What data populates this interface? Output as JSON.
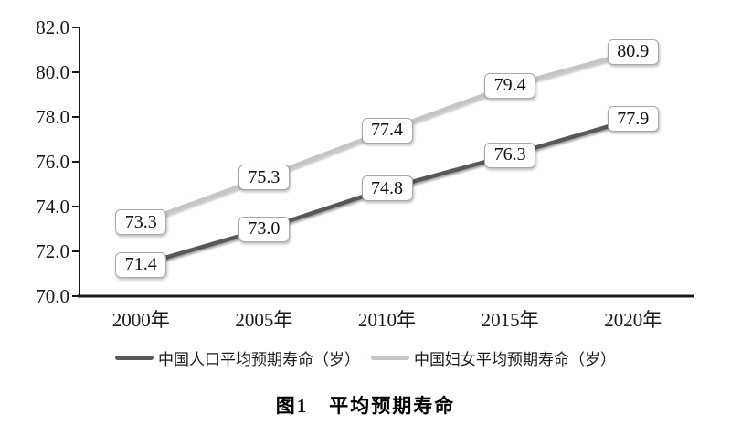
{
  "chart_data": {
    "type": "line",
    "title": "图1　平均预期寿命",
    "categories": [
      "2000年",
      "2005年",
      "2010年",
      "2015年",
      "2020年"
    ],
    "series": [
      {
        "name": "中国人口平均预期寿命（岁）",
        "values": [
          71.4,
          73.0,
          74.8,
          76.3,
          77.9
        ],
        "color": "#595959"
      },
      {
        "name": "中国妇女平均预期寿命（岁）",
        "values": [
          73.3,
          75.3,
          77.4,
          79.4,
          80.9
        ],
        "color": "#c9c4c4"
      }
    ],
    "ylim": [
      70.0,
      82.0
    ],
    "ytick_labels": [
      "70.0",
      "72.0",
      "74.0",
      "76.0",
      "78.0",
      "80.0",
      "82.0"
    ],
    "xlabel": "",
    "ylabel": "",
    "grid": false,
    "legend_position": "bottom",
    "data_labels": "boxed-on-point",
    "axis_color": "#1a1a1a",
    "text_color": "#1a1a1a",
    "label_box": {
      "background": "#ffffff",
      "border": "#a9a9a9"
    }
  }
}
